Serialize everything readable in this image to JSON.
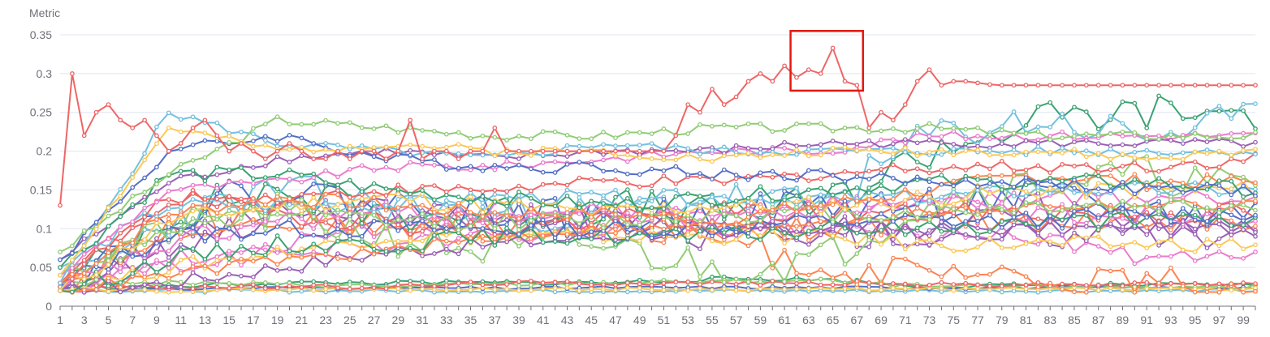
{
  "chart_data": {
    "type": "line",
    "ylabel": "Metric",
    "ylim": [
      0,
      0.35
    ],
    "y_ticks": [
      "0",
      "0.05",
      "0.1",
      "0.15",
      "0.2",
      "0.25",
      "0.3",
      "0.35"
    ],
    "x": {
      "start": 1,
      "end": 100
    },
    "x_tick_labels": [
      "1",
      "3",
      "5",
      "7",
      "9",
      "11",
      "13",
      "15",
      "17",
      "19",
      "21",
      "23",
      "25",
      "27",
      "29",
      "31",
      "33",
      "35",
      "37",
      "39",
      "41",
      "43",
      "45",
      "47",
      "49",
      "51",
      "53",
      "55",
      "57",
      "59",
      "61",
      "63",
      "65",
      "67",
      "69",
      "71",
      "73",
      "75",
      "77",
      "79",
      "81",
      "83",
      "85",
      "87",
      "89",
      "91",
      "93",
      "95",
      "97",
      "99"
    ],
    "grid": true,
    "highlight": {
      "x_range": [
        61.5,
        67.5
      ],
      "y_range": [
        0.278,
        0.355
      ],
      "color": "#e3190f"
    },
    "series_colors": [
      "#ee6666",
      "#fac858",
      "#91cc75",
      "#5470c6",
      "#73c0de",
      "#3ba272",
      "#fc8452",
      "#9a60b4",
      "#ea7ccc"
    ],
    "series": [
      {
        "values": [
          0.13,
          0.3,
          0.22,
          0.25,
          0.26,
          0.24,
          0.23,
          0.24,
          0.22,
          0.2,
          0.21,
          0.23,
          0.24,
          0.22,
          0.2,
          0.21,
          0.2,
          0.19,
          0.2,
          0.21,
          0.2,
          0.19,
          0.19,
          0.2,
          0.19,
          0.2,
          0.2,
          0.19,
          0.2,
          0.24,
          0.19,
          0.2,
          0.2,
          0.19,
          0.2,
          0.2,
          0.23,
          0.2,
          0.2,
          0.2,
          0.2,
          0.2,
          0.2,
          0.2,
          0.2,
          0.2,
          0.2,
          0.2,
          0.2,
          0.2,
          0.2,
          0.22,
          0.26,
          0.25,
          0.28,
          0.26,
          0.27,
          0.29,
          0.3,
          0.29,
          0.31,
          0.295,
          0.305,
          0.3,
          0.333,
          0.29,
          0.285,
          0.23,
          0.25,
          0.24,
          0.26,
          0.29,
          0.305,
          0.285,
          0.29,
          0.29,
          0.288,
          0.286,
          0.285,
          0.285,
          0.285,
          0.285,
          0.285,
          0.285,
          0.285,
          0.285,
          0.285,
          0.285,
          0.285,
          0.285,
          0.285,
          0.285,
          0.285,
          0.285,
          0.285,
          0.285,
          0.285,
          0.285,
          0.285,
          0.285
        ]
      },
      {
        "kind": "walk",
        "levels": [
          0.04,
          0.23,
          0.2,
          0.21,
          0.2,
          0.2,
          0.19,
          0.2,
          0.2,
          0.2,
          0.19,
          0.2
        ],
        "noise": 0.006,
        "seed": 2
      },
      {
        "kind": "walk",
        "levels": [
          0.07,
          0.17,
          0.24,
          0.23,
          0.22,
          0.22,
          0.23,
          0.23,
          0.23,
          0.22,
          0.22,
          0.22
        ],
        "noise": 0.006,
        "seed": 3
      },
      {
        "kind": "walk",
        "levels": [
          0.06,
          0.2,
          0.22,
          0.19,
          0.18,
          0.18,
          0.17,
          0.17,
          0.16,
          0.16,
          0.15,
          0.15
        ],
        "noise": 0.008,
        "seed": 4
      },
      {
        "kind": "walk",
        "levels": [
          0.03,
          0.25,
          0.21,
          0.2,
          0.19,
          0.21,
          0.2,
          0.2,
          0.2,
          0.2,
          0.2,
          0.2
        ],
        "noise": 0.006,
        "seed": 5
      },
      {
        "kind": "walk",
        "levels": [
          0.05,
          0.17,
          0.17,
          0.15,
          0.14,
          0.13,
          0.14,
          0.15,
          0.16,
          0.16,
          0.16,
          0.15
        ],
        "noise": 0.01,
        "seed": 6
      },
      {
        "kind": "walk",
        "levels": [
          0.03,
          0.12,
          0.14,
          0.13,
          0.12,
          0.12,
          0.11,
          0.13,
          0.15,
          0.17,
          0.16,
          0.16
        ],
        "noise": 0.01,
        "seed": 7
      },
      {
        "kind": "walk",
        "levels": [
          0.06,
          0.16,
          0.19,
          0.2,
          0.19,
          0.2,
          0.2,
          0.21,
          0.21,
          0.21,
          0.21,
          0.21
        ],
        "noise": 0.006,
        "seed": 8
      },
      {
        "kind": "walk",
        "levels": [
          0.04,
          0.15,
          0.16,
          0.18,
          0.18,
          0.19,
          0.2,
          0.2,
          0.22,
          0.22,
          0.22,
          0.22
        ],
        "noise": 0.006,
        "seed": 9
      },
      {
        "kind": "walk",
        "levels": [
          0.03,
          0.14,
          0.14,
          0.15,
          0.15,
          0.16,
          0.16,
          0.17,
          0.18,
          0.18,
          0.18,
          0.19
        ],
        "noise": 0.008,
        "seed": 10
      },
      {
        "kind": "walk",
        "levels": [
          0.02,
          0.11,
          0.13,
          0.14,
          0.13,
          0.12,
          0.13,
          0.13,
          0.14,
          0.15,
          0.15,
          0.15
        ],
        "noise": 0.012,
        "seed": 11
      },
      {
        "kind": "walk",
        "levels": [
          0.04,
          0.1,
          0.12,
          0.11,
          0.11,
          0.11,
          0.12,
          0.12,
          0.12,
          0.13,
          0.13,
          0.13
        ],
        "noise": 0.012,
        "seed": 12
      },
      {
        "kind": "walk",
        "levels": [
          0.03,
          0.09,
          0.1,
          0.1,
          0.1,
          0.1,
          0.1,
          0.11,
          0.11,
          0.11,
          0.12,
          0.12
        ],
        "noise": 0.012,
        "seed": 13
      },
      {
        "kind": "walk",
        "levels": [
          0.05,
          0.13,
          0.13,
          0.13,
          0.14,
          0.14,
          0.14,
          0.14,
          0.14,
          0.15,
          0.15,
          0.15
        ],
        "noise": 0.01,
        "seed": 14
      },
      {
        "kind": "walk",
        "levels": [
          0.02,
          0.06,
          0.08,
          0.08,
          0.09,
          0.09,
          0.09,
          0.1,
          0.1,
          0.11,
          0.11,
          0.11
        ],
        "noise": 0.012,
        "seed": 15
      },
      {
        "kind": "walk",
        "levels": [
          0.02,
          0.04,
          0.06,
          0.07,
          0.09,
          0.1,
          0.1,
          0.11,
          0.12,
          0.13,
          0.13,
          0.13
        ],
        "noise": 0.008,
        "seed": 16
      },
      {
        "kind": "walk",
        "levels": [
          0.02,
          0.03,
          0.05,
          0.07,
          0.08,
          0.09,
          0.1,
          0.1,
          0.1,
          0.1,
          0.1,
          0.1
        ],
        "noise": 0.01,
        "seed": 17
      },
      {
        "kind": "walk",
        "levels": [
          0.02,
          0.08,
          0.11,
          0.12,
          0.12,
          0.12,
          0.11,
          0.13,
          0.13,
          0.12,
          0.12,
          0.12
        ],
        "noise": 0.015,
        "seed": 18
      },
      {
        "kind": "walk",
        "levels": [
          0.03,
          0.14,
          0.12,
          0.11,
          0.1,
          0.11,
          0.12,
          0.12,
          0.12,
          0.12,
          0.12,
          0.12
        ],
        "noise": 0.015,
        "seed": 19
      },
      {
        "kind": "walk",
        "levels": [
          0.02,
          0.05,
          0.07,
          0.09,
          0.09,
          0.09,
          0.09,
          0.09,
          0.08,
          0.08,
          0.08,
          0.08
        ],
        "noise": 0.01,
        "seed": 20
      },
      {
        "kind": "walk",
        "levels": [
          0.02,
          0.1,
          0.12,
          0.09,
          0.07,
          0.08,
          0.05,
          0.06,
          0.14,
          0.16,
          0.17,
          0.15
        ],
        "noise": 0.025,
        "seed": 21
      },
      {
        "kind": "walk",
        "levels": [
          0.03,
          0.12,
          0.15,
          0.13,
          0.12,
          0.11,
          0.12,
          0.13,
          0.13,
          0.14,
          0.12,
          0.12
        ],
        "noise": 0.025,
        "seed": 22
      },
      {
        "kind": "walk",
        "levels": [
          0.02,
          0.11,
          0.15,
          0.13,
          0.12,
          0.12,
          0.14,
          0.13,
          0.22,
          0.24,
          0.22,
          0.24
        ],
        "noise": 0.025,
        "seed": 23
      },
      {
        "kind": "walk",
        "levels": [
          0.02,
          0.12,
          0.15,
          0.12,
          0.12,
          0.13,
          0.12,
          0.13,
          0.2,
          0.24,
          0.25,
          0.25
        ],
        "noise": 0.025,
        "seed": 24
      },
      {
        "kind": "walk",
        "levels": [
          0.02,
          0.11,
          0.12,
          0.11,
          0.1,
          0.1,
          0.09,
          0.05,
          0.04,
          0.03,
          0.03,
          0.03
        ],
        "noise": 0.02,
        "seed": 25
      },
      {
        "kind": "walk",
        "levels": [
          0.02,
          0.08,
          0.12,
          0.12,
          0.11,
          0.11,
          0.09,
          0.1,
          0.09,
          0.13,
          0.12,
          0.1
        ],
        "noise": 0.02,
        "seed": 26
      },
      {
        "kind": "walk",
        "levels": [
          0.02,
          0.06,
          0.08,
          0.1,
          0.11,
          0.12,
          0.12,
          0.13,
          0.13,
          0.14,
          0.14,
          0.14
        ],
        "noise": 0.012,
        "seed": 27
      },
      {
        "kind": "walk",
        "levels": [
          0.025,
          0.025,
          0.025,
          0.025,
          0.03,
          0.03,
          0.03,
          0.03,
          0.028,
          0.028,
          0.028,
          0.028
        ],
        "noise": 0.003,
        "seed": 28
      },
      {
        "kind": "walk",
        "levels": [
          0.02,
          0.02,
          0.022,
          0.022,
          0.022,
          0.022,
          0.022,
          0.022,
          0.022,
          0.022,
          0.022,
          0.022
        ],
        "noise": 0.002,
        "seed": 29
      },
      {
        "kind": "walk",
        "levels": [
          0.03,
          0.03,
          0.028,
          0.026,
          0.028,
          0.03,
          0.032,
          0.033,
          0.025,
          0.026,
          0.025,
          0.025
        ],
        "noise": 0.003,
        "seed": 30
      },
      {
        "kind": "walk",
        "levels": [
          0.02,
          0.022,
          0.024,
          0.024,
          0.023,
          0.024,
          0.024,
          0.024,
          0.024,
          0.024,
          0.024,
          0.024
        ],
        "noise": 0.002,
        "seed": 31
      },
      {
        "kind": "walk",
        "levels": [
          0.02,
          0.02,
          0.02,
          0.02,
          0.02,
          0.02,
          0.02,
          0.02,
          0.02,
          0.02,
          0.02,
          0.02
        ],
        "noise": 0.002,
        "seed": 32
      },
      {
        "kind": "walk",
        "levels": [
          0.025,
          0.025,
          0.03,
          0.03,
          0.03,
          0.03,
          0.035,
          0.035,
          0.025,
          0.027,
          0.027,
          0.027
        ],
        "noise": 0.003,
        "seed": 33
      },
      {
        "kind": "walk",
        "levels": [
          0.02,
          0.1,
          0.11,
          0.1,
          0.1,
          0.1,
          0.1,
          0.1,
          0.11,
          0.11,
          0.11,
          0.1
        ],
        "noise": 0.015,
        "seed": 34
      },
      {
        "kind": "walk",
        "levels": [
          0.02,
          0.09,
          0.13,
          0.11,
          0.12,
          0.11,
          0.1,
          0.1,
          0.1,
          0.09,
          0.09,
          0.09
        ],
        "noise": 0.015,
        "seed": 35
      },
      {
        "kind": "walk",
        "levels": [
          0.02,
          0.05,
          0.07,
          0.08,
          0.09,
          0.1,
          0.1,
          0.1,
          0.09,
          0.09,
          0.06,
          0.06
        ],
        "noise": 0.012,
        "seed": 36
      }
    ]
  }
}
